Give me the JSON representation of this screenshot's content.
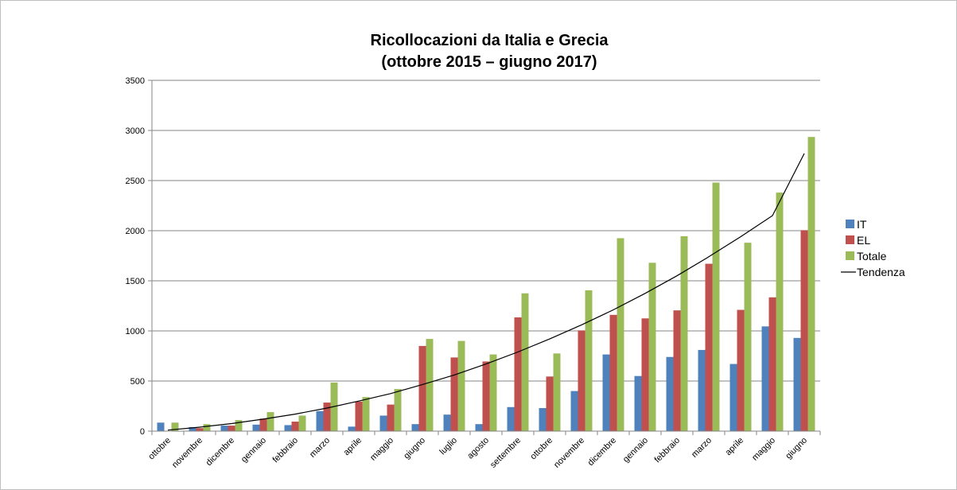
{
  "chart_data": {
    "type": "bar",
    "title": [
      "Ricollocazioni da Italia e Grecia",
      "(ottobre 2015 – giugno 2017)"
    ],
    "categories": [
      "ottobre",
      "novembre",
      "dicembre",
      "gennaio",
      "febbraio",
      "marzo",
      "aprile",
      "maggio",
      "giugno",
      "luglio",
      "agosto",
      "settembre",
      "ottobre",
      "novembre",
      "dicembre",
      "gennaio",
      "febbraio",
      "marzo",
      "aprile",
      "maggio",
      "giugno"
    ],
    "series": [
      {
        "name": "IT",
        "color": "#4f81bd",
        "values": [
          85,
          40,
          55,
          65,
          60,
          200,
          45,
          155,
          70,
          165,
          70,
          240,
          230,
          400,
          765,
          550,
          740,
          810,
          670,
          1045,
          930
        ]
      },
      {
        "name": "EL",
        "color": "#c0504d",
        "values": [
          0,
          30,
          55,
          125,
          95,
          285,
          295,
          265,
          850,
          735,
          695,
          1135,
          545,
          1005,
          1160,
          1125,
          1205,
          1670,
          1210,
          1335,
          2005
        ]
      },
      {
        "name": "Totale",
        "color": "#9bbb59",
        "values": [
          85,
          70,
          110,
          190,
          155,
          485,
          340,
          420,
          920,
          900,
          765,
          1375,
          775,
          1405,
          1925,
          1680,
          1945,
          2480,
          1880,
          2380,
          2935
        ]
      }
    ],
    "trend": {
      "name": "Tendenza",
      "color": "#000000",
      "values": [
        10,
        40,
        75,
        120,
        170,
        230,
        300,
        375,
        465,
        560,
        670,
        790,
        920,
        1060,
        1210,
        1375,
        1550,
        1740,
        1940,
        2150,
        2770
      ]
    },
    "ylim": [
      0,
      3500
    ],
    "yticks": [
      0,
      500,
      1000,
      1500,
      2000,
      2500,
      3000,
      3500
    ],
    "grid": true,
    "legend_position": "right"
  }
}
